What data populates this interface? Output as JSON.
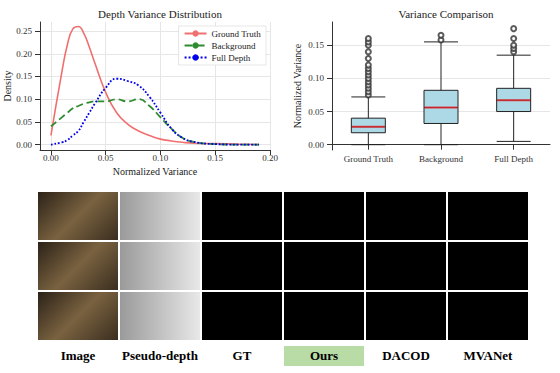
{
  "chart_data": [
    {
      "type": "line",
      "title": "Depth Variance Distribution",
      "x_label": "Normalized Variance",
      "y_label": "Density",
      "x": [
        0,
        0.01,
        0.015,
        0.02,
        0.025,
        0.03,
        0.035,
        0.04,
        0.05,
        0.06,
        0.07,
        0.08,
        0.09,
        0.1,
        0.11,
        0.12,
        0.13,
        0.15,
        0.17,
        0.19
      ],
      "series": [
        {
          "name": "Ground Truth",
          "color": "#f07070",
          "line_style": "solid",
          "values": [
            0.02,
            0.16,
            0.22,
            0.255,
            0.26,
            0.245,
            0.215,
            0.18,
            0.115,
            0.07,
            0.045,
            0.03,
            0.02,
            0.012,
            0.008,
            0.005,
            0.003,
            0.002,
            0.001,
            0
          ]
        },
        {
          "name": "Background",
          "color": "#2e8b2e",
          "line_style": "dashed",
          "values": [
            0.04,
            0.06,
            0.07,
            0.08,
            0.085,
            0.09,
            0.093,
            0.095,
            0.095,
            0.1,
            0.095,
            0.1,
            0.085,
            0.06,
            0.035,
            0.015,
            0.006,
            0.001,
            0,
            0
          ]
        },
        {
          "name": "Full Depth",
          "color": "#0000ee",
          "line_style": "dotted",
          "values": [
            0,
            0.005,
            0.01,
            0.02,
            0.03,
            0.05,
            0.07,
            0.09,
            0.125,
            0.145,
            0.14,
            0.13,
            0.105,
            0.07,
            0.035,
            0.015,
            0.006,
            0.001,
            0,
            0
          ]
        }
      ],
      "xlim": [
        -0.01,
        0.2
      ],
      "xticks": [
        {
          "value": 0,
          "label": "0.00"
        },
        {
          "value": 0.05,
          "label": "0.05"
        },
        {
          "value": 0.1,
          "label": "0.10"
        },
        {
          "value": 0.15,
          "label": "0.15"
        },
        {
          "value": 0.2,
          "label": "0.20"
        }
      ],
      "ylim": [
        -0.012,
        0.27
      ],
      "yticks": [
        {
          "value": 0,
          "label": "0.00"
        },
        {
          "value": 0.05,
          "label": "0.05"
        },
        {
          "value": 0.1,
          "label": "0.10"
        },
        {
          "value": 0.15,
          "label": "0.15"
        },
        {
          "value": 0.2,
          "label": "0.20"
        },
        {
          "value": 0.25,
          "label": "0.25"
        }
      ],
      "grid": true,
      "legend": "upper right"
    },
    {
      "type": "box",
      "title": "Variance Comparison",
      "y_label": "Normalized Variance",
      "categories": [
        "Ground Truth",
        "Background",
        "Full Depth"
      ],
      "values": [
        [
          0.0,
          0.018,
          0.027,
          0.04,
          0.072
        ],
        [
          0.0,
          0.032,
          0.056,
          0.082,
          0.155
        ],
        [
          0.005,
          0.05,
          0.067,
          0.085,
          0.135
        ]
      ],
      "outliers": [
        [
          0.075,
          0.08,
          0.085,
          0.09,
          0.095,
          0.1,
          0.105,
          0.11,
          0.115,
          0.12,
          0.13,
          0.14,
          0.15,
          0.155,
          0.16
        ],
        [
          0.158,
          0.165
        ],
        [
          0.14,
          0.145,
          0.15,
          0.16,
          0.175
        ]
      ],
      "color": "#add8e6",
      "ylim": [
        -0.008,
        0.185
      ],
      "yticks": [
        {
          "value": 0,
          "label": "0.00"
        },
        {
          "value": 0.05,
          "label": "0.05"
        },
        {
          "value": 0.1,
          "label": "0.10"
        },
        {
          "value": 0.15,
          "label": "0.15"
        }
      ],
      "grid": true
    }
  ],
  "image_grid": {
    "rows": 3,
    "columns": [
      {
        "label": "Image"
      },
      {
        "label": "Pseudo-depth"
      },
      {
        "label": "GT"
      },
      {
        "label": "Ours",
        "highlight": true
      },
      {
        "label": "DACOD"
      },
      {
        "label": "MVANet"
      }
    ]
  }
}
